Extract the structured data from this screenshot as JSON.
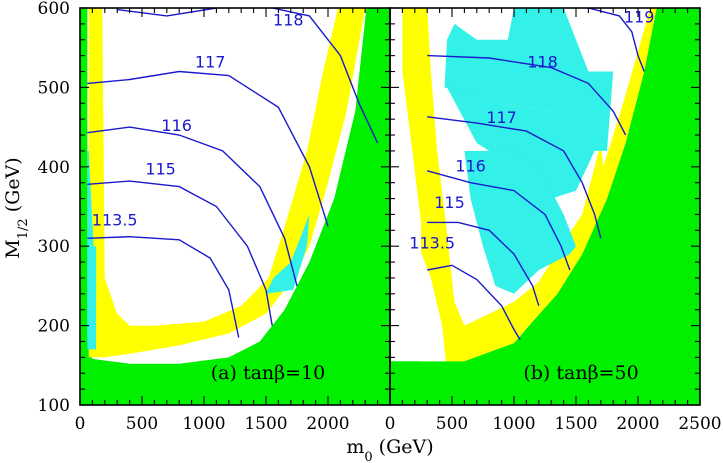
{
  "chart_data": {
    "type": "area",
    "panels": [
      {
        "label": "(a) tanβ=10",
        "xlim": [
          0,
          2500
        ],
        "ylim": [
          100,
          600
        ],
        "x_ticks": [
          0,
          500,
          1000,
          1500,
          2000
        ],
        "y_ticks": [
          100,
          200,
          300,
          400,
          500,
          600
        ],
        "regions": {
          "green": [
            [
              0,
              100
            ],
            [
              2500,
              100
            ],
            [
              2500,
              600
            ],
            [
              2310,
              600
            ],
            [
              2220,
              470
            ],
            [
              2050,
              360
            ],
            [
              1850,
              280
            ],
            [
              1650,
              220
            ],
            [
              1450,
              180
            ],
            [
              1200,
              160
            ],
            [
              800,
              152
            ],
            [
              400,
              152
            ],
            [
              100,
              158
            ],
            [
              60,
              180
            ],
            [
              60,
              600
            ],
            [
              0,
              600
            ]
          ],
          "yellow": [
            [
              70,
              160
            ],
            [
              200,
              160
            ],
            [
              420,
              165
            ],
            [
              800,
              175
            ],
            [
              1200,
              190
            ],
            [
              1500,
              215
            ],
            [
              1700,
              255
            ],
            [
              1850,
              300
            ],
            [
              2000,
              380
            ],
            [
              2150,
              470
            ],
            [
              2300,
              600
            ],
            [
              2080,
              600
            ],
            [
              1960,
              520
            ],
            [
              1830,
              420
            ],
            [
              1660,
              330
            ],
            [
              1520,
              260
            ],
            [
              1300,
              225
            ],
            [
              1000,
              205
            ],
            [
              600,
              200
            ],
            [
              400,
              200
            ],
            [
              300,
              215
            ],
            [
              200,
              260
            ],
            [
              180,
              600
            ],
            [
              70,
              600
            ]
          ],
          "cyan": [
            [
              60,
              170
            ],
            [
              130,
              170
            ],
            [
              130,
              300
            ],
            [
              110,
              300
            ],
            [
              70,
              420
            ],
            [
              60,
              420
            ]
          ],
          "cyan2": [
            [
              1500,
              240
            ],
            [
              1720,
              245
            ],
            [
              1830,
              300
            ],
            [
              1850,
              340
            ],
            [
              1700,
              280
            ],
            [
              1560,
              260
            ]
          ],
          "white": [
            [
              300,
              215
            ],
            [
              400,
              200
            ],
            [
              600,
              200
            ],
            [
              1000,
              205
            ],
            [
              1300,
              225
            ],
            [
              1520,
              260
            ],
            [
              1660,
              330
            ],
            [
              1830,
              420
            ],
            [
              1960,
              520
            ],
            [
              2080,
              600
            ],
            [
              190,
              600
            ],
            [
              200,
              260
            ]
          ]
        },
        "contours": [
          {
            "label": "113.5",
            "label_pos": [
              280,
              326
            ],
            "points": [
              [
                60,
                310
              ],
              [
                400,
                312
              ],
              [
                800,
                308
              ],
              [
                1050,
                285
              ],
              [
                1200,
                245
              ],
              [
                1280,
                185
              ]
            ]
          },
          {
            "label": "115",
            "label_pos": [
              650,
              390
            ],
            "points": [
              [
                60,
                378
              ],
              [
                400,
                382
              ],
              [
                800,
                375
              ],
              [
                1100,
                350
              ],
              [
                1350,
                300
              ],
              [
                1500,
                245
              ],
              [
                1550,
                200
              ]
            ]
          },
          {
            "label": "116",
            "label_pos": [
              780,
              445
            ],
            "points": [
              [
                60,
                443
              ],
              [
                400,
                450
              ],
              [
                800,
                440
              ],
              [
                1150,
                420
              ],
              [
                1450,
                375
              ],
              [
                1650,
                310
              ],
              [
                1750,
                250
              ]
            ]
          },
          {
            "label": "117",
            "label_pos": [
              1050,
              525
            ],
            "points": [
              [
                60,
                505
              ],
              [
                400,
                510
              ],
              [
                800,
                520
              ],
              [
                1200,
                515
              ],
              [
                1600,
                475
              ],
              [
                1850,
                400
              ],
              [
                2000,
                325
              ]
            ]
          },
          {
            "label": "118",
            "label_pos": [
              1680,
              578
            ],
            "points": [
              [
                300,
                598
              ],
              [
                700,
                590
              ],
              [
                1100,
                600
              ]
            ],
            "points_b": [
              [
                1550,
                600
              ],
              [
                1850,
                590
              ],
              [
                2100,
                540
              ],
              [
                2250,
                480
              ],
              [
                2400,
                430
              ]
            ]
          }
        ]
      },
      {
        "label": "(b) tanβ=50",
        "xlim": [
          0,
          2500
        ],
        "ylim": [
          100,
          600
        ],
        "x_ticks": [
          0,
          500,
          1000,
          1500,
          2000,
          2500
        ],
        "y_ticks": [
          100,
          200,
          300,
          400,
          500,
          600
        ],
        "regions": {
          "green": [
            [
              0,
              100
            ],
            [
              2500,
              100
            ],
            [
              2500,
              600
            ],
            [
              2150,
              600
            ],
            [
              2050,
              520
            ],
            [
              1900,
              430
            ],
            [
              1750,
              360
            ],
            [
              1550,
              290
            ],
            [
              1350,
              240
            ],
            [
              1150,
              205
            ],
            [
              1000,
              178
            ],
            [
              600,
              155
            ],
            [
              0,
              155
            ]
          ],
          "yellow": [
            [
              250,
              155
            ],
            [
              600,
              155
            ],
            [
              1000,
              178
            ],
            [
              1150,
              205
            ],
            [
              1350,
              240
            ],
            [
              1550,
              290
            ],
            [
              1750,
              360
            ],
            [
              1900,
              430
            ],
            [
              2050,
              520
            ],
            [
              2150,
              600
            ],
            [
              1980,
              600
            ],
            [
              1850,
              520
            ],
            [
              1700,
              430
            ],
            [
              1550,
              340
            ],
            [
              1380,
              300
            ],
            [
              1200,
              255
            ],
            [
              1000,
              230
            ],
            [
              800,
              215
            ],
            [
              600,
              200
            ],
            [
              520,
              230
            ],
            [
              450,
              330
            ],
            [
              380,
              420
            ],
            [
              330,
              520
            ],
            [
              300,
              600
            ],
            [
              100,
              600
            ],
            [
              100,
              520
            ],
            [
              180,
              420
            ],
            [
              250,
              330
            ]
          ],
          "white": [
            [
              250,
              155
            ],
            [
              450,
              155
            ],
            [
              420,
              200
            ],
            [
              330,
              260
            ],
            [
              230,
              300
            ],
            [
              230,
              220
            ]
          ],
          "white2": [
            [
              1700,
              430
            ],
            [
              1850,
              520
            ],
            [
              1980,
              600
            ],
            [
              2100,
              600
            ],
            [
              1880,
              480
            ],
            [
              1720,
              400
            ]
          ],
          "white3": [
            [
              1820,
              600
            ],
            [
              1990,
              600
            ],
            [
              1880,
              520
            ]
          ],
          "cyan": [
            [
              440,
              500
            ],
            [
              900,
              480
            ],
            [
              1300,
              470
            ],
            [
              1500,
              430
            ],
            [
              1650,
              420
            ],
            [
              1750,
              420
            ],
            [
              1800,
              520
            ],
            [
              1600,
              520
            ],
            [
              1500,
              560
            ],
            [
              1400,
              600
            ],
            [
              1000,
              600
            ],
            [
              950,
              560
            ],
            [
              700,
              560
            ],
            [
              520,
              580
            ],
            [
              460,
              560
            ]
          ],
          "cyan_lower": [
            [
              600,
              420
            ],
            [
              1000,
              420
            ],
            [
              1200,
              400
            ],
            [
              1400,
              340
            ],
            [
              1500,
              300
            ],
            [
              1450,
              290
            ],
            [
              1200,
              270
            ],
            [
              1000,
              240
            ],
            [
              850,
              250
            ],
            [
              750,
              300
            ],
            [
              650,
              360
            ]
          ],
          "cyan_mid": [
            [
              460,
              500
            ],
            [
              900,
              480
            ],
            [
              1300,
              470
            ],
            [
              1500,
              430
            ],
            [
              1650,
              420
            ],
            [
              1500,
              370
            ],
            [
              1300,
              360
            ],
            [
              1100,
              380
            ],
            [
              900,
              410
            ],
            [
              700,
              430
            ]
          ]
        },
        "contours": [
          {
            "label": "113.5",
            "label_pos": [
              340,
              297
            ],
            "points": [
              [
                300,
                270
              ],
              [
                500,
                276
              ],
              [
                700,
                258
              ],
              [
                900,
                225
              ],
              [
                1000,
                195
              ],
              [
                1050,
                182
              ]
            ]
          },
          {
            "label": "115",
            "label_pos": [
              480,
              348
            ],
            "points": [
              [
                300,
                330
              ],
              [
                550,
                330
              ],
              [
                800,
                320
              ],
              [
                1000,
                290
              ],
              [
                1150,
                250
              ],
              [
                1200,
                225
              ]
            ]
          },
          {
            "label": "116",
            "label_pos": [
              650,
              394
            ],
            "points": [
              [
                300,
                395
              ],
              [
                650,
                380
              ],
              [
                1000,
                370
              ],
              [
                1250,
                340
              ],
              [
                1380,
                300
              ],
              [
                1450,
                270
              ]
            ]
          },
          {
            "label": "117",
            "label_pos": [
              900,
              455
            ],
            "points": [
              [
                300,
                463
              ],
              [
                700,
                455
              ],
              [
                1100,
                445
              ],
              [
                1400,
                420
              ],
              [
                1550,
                380
              ],
              [
                1650,
                340
              ],
              [
                1700,
                310
              ]
            ]
          },
          {
            "label": "118",
            "label_pos": [
              1230,
              525
            ],
            "points": [
              [
                300,
                540
              ],
              [
                800,
                537
              ],
              [
                1300,
                525
              ],
              [
                1600,
                505
              ],
              [
                1800,
                470
              ],
              [
                1900,
                440
              ]
            ]
          },
          {
            "label": "119",
            "label_pos": [
              2010,
              582
            ],
            "points": [
              [
                1600,
                600
              ],
              [
                1850,
                590
              ],
              [
                1950,
                570
              ],
              [
                2000,
                540
              ],
              [
                2050,
                520
              ]
            ]
          }
        ]
      }
    ],
    "xlabel": "m0 (GeV)",
    "ylabel": "M1/2 (GeV)"
  },
  "axes": {
    "xlabel_main": "m",
    "xlabel_sub": "0",
    "xlabel_unit": " (GeV)",
    "ylabel_main": "M",
    "ylabel_sub": "1/2",
    "ylabel_unit": " (GeV)"
  },
  "colors": {
    "green": "#00f000",
    "yellow": "#ffff00",
    "cyan": "#33f0e8",
    "white": "#ffffff",
    "contour": "#1a1acc"
  }
}
